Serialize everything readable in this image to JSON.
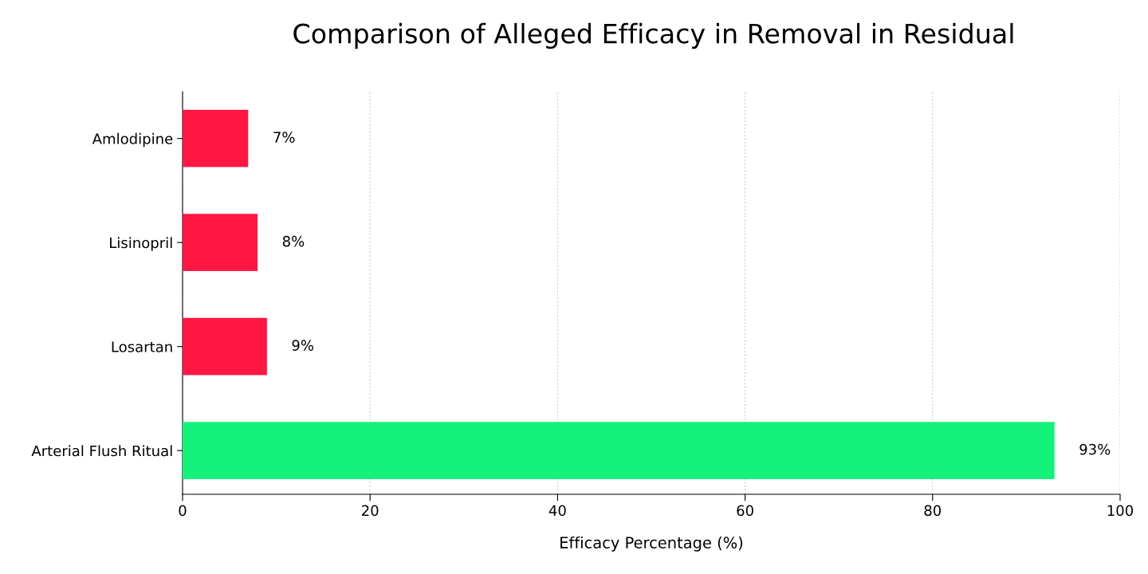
{
  "chart_data": {
    "type": "bar",
    "orientation": "horizontal",
    "title": "Comparison of Alleged Efficacy in Removal in Residual",
    "xlabel": "Efficacy Percentage (%)",
    "categories": [
      "Amlodipine",
      "Lisinopril",
      "Losartan",
      "Arterial Flush Ritual"
    ],
    "values": [
      7,
      8,
      9,
      93
    ],
    "colors": [
      "#ff1744",
      "#ff1744",
      "#ff1744",
      "#14f27c"
    ],
    "value_labels": [
      "7%",
      "8%",
      "9%",
      "93%"
    ],
    "xlim": [
      0,
      100
    ],
    "xticks": [
      0,
      20,
      40,
      60,
      80,
      100
    ],
    "grid": "x",
    "legend": false
  }
}
